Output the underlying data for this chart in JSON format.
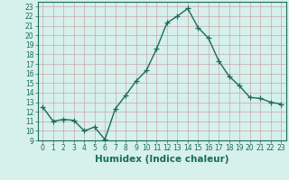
{
  "x": [
    0,
    1,
    2,
    3,
    4,
    5,
    6,
    7,
    8,
    9,
    10,
    11,
    12,
    13,
    14,
    15,
    16,
    17,
    18,
    19,
    20,
    21,
    22,
    23
  ],
  "y": [
    12.5,
    11.0,
    11.2,
    11.1,
    10.0,
    10.4,
    9.1,
    12.3,
    13.7,
    15.2,
    16.3,
    18.6,
    21.3,
    22.0,
    22.8,
    20.8,
    19.7,
    17.3,
    15.7,
    14.7,
    13.5,
    13.4,
    13.0,
    12.8
  ],
  "xlabel": "Humidex (Indice chaleur)",
  "xlim": [
    -0.5,
    23.5
  ],
  "ylim": [
    9,
    23.5
  ],
  "yticks": [
    9,
    10,
    11,
    12,
    13,
    14,
    15,
    16,
    17,
    18,
    19,
    20,
    21,
    22,
    23
  ],
  "xticks": [
    0,
    1,
    2,
    3,
    4,
    5,
    6,
    7,
    8,
    9,
    10,
    11,
    12,
    13,
    14,
    15,
    16,
    17,
    18,
    19,
    20,
    21,
    22,
    23
  ],
  "line_color": "#1a6b5a",
  "bg_color": "#d6f0ec",
  "grid_color": "#c8a8a8",
  "marker": "+",
  "marker_size": 4,
  "line_width": 1.0,
  "tick_label_fontsize": 5.5,
  "xlabel_fontsize": 7.5
}
